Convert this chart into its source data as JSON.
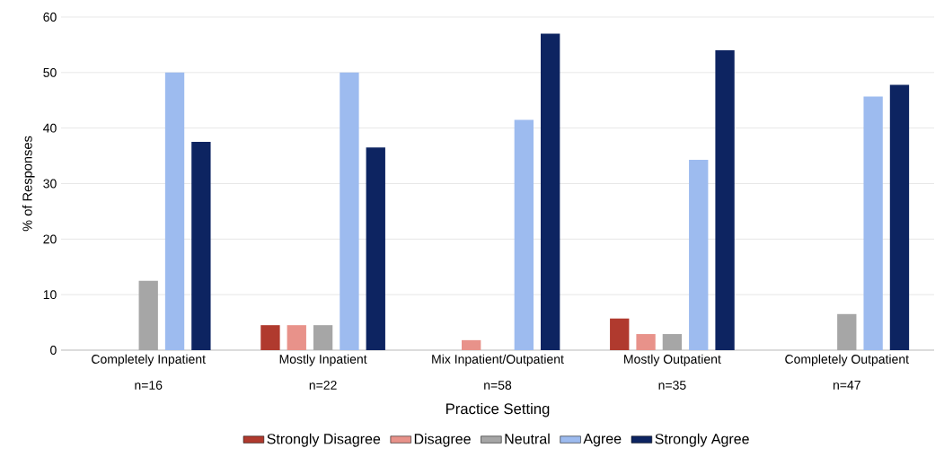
{
  "chart_data": {
    "type": "bar",
    "xlabel": "Practice Setting",
    "ylabel": "% of Responses",
    "categories": [
      "Completely Inpatient",
      "Mostly Inpatient",
      "Mix Inpatient/Outpatient",
      "Mostly Outpatient",
      "Completely Outpatient"
    ],
    "annotations": [
      "n=16",
      "n=22",
      "n=58",
      "n=35",
      "n=47"
    ],
    "series": [
      {
        "name": "Strongly Disagree",
        "color": "#b03a2e",
        "values": [
          0,
          4.5,
          0,
          5.7,
          0
        ]
      },
      {
        "name": "Disagree",
        "color": "#e8928a",
        "values": [
          0,
          4.5,
          1.8,
          2.9,
          0
        ]
      },
      {
        "name": "Neutral",
        "color": "#a6a6a6",
        "values": [
          12.5,
          4.5,
          0,
          2.9,
          6.5
        ]
      },
      {
        "name": "Agree",
        "color": "#9dbbef",
        "values": [
          50,
          50,
          41.5,
          34.3,
          45.7
        ]
      },
      {
        "name": "Strongly Agree",
        "color": "#0d2461",
        "values": [
          37.5,
          36.5,
          57,
          54,
          47.8
        ]
      }
    ],
    "ylim": [
      0,
      60
    ],
    "yticks": [
      0,
      10,
      20,
      30,
      40,
      50,
      60
    ],
    "grid": "y",
    "legend": "bottom"
  }
}
